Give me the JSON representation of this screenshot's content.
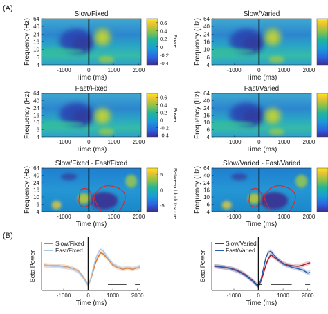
{
  "panel_labels": {
    "a": "(A)",
    "b": "(B)"
  },
  "chart_data": [
    {
      "type": "heatmap",
      "title": "Slow/Fixed",
      "xlabel": "Time (ms)",
      "ylabel": "Frequency (Hz)",
      "xticks": [
        "-1000",
        "0",
        "1000",
        "2000"
      ],
      "yticks": [
        "4",
        "6",
        "10",
        "16",
        "24",
        "40",
        "64"
      ],
      "xlim": [
        -1900,
        2100
      ],
      "colorbar": {
        "label": "Power",
        "ticks": [
          "0.6",
          "0.4",
          "0.2",
          "0",
          "-0.2",
          "-0.4"
        ],
        "range": [
          -0.45,
          0.7
        ]
      }
    },
    {
      "type": "heatmap",
      "title": "Slow/Varied",
      "xlabel": "Time (ms)",
      "ylabel": "Frequency (Hz)",
      "xticks": [
        "-1000",
        "0",
        "1000",
        "2000"
      ],
      "yticks": [
        "4",
        "6",
        "10",
        "16",
        "24",
        "40",
        "64"
      ],
      "xlim": [
        -1900,
        2100
      ]
    },
    {
      "type": "heatmap",
      "title": "Fast/Fixed",
      "xlabel": "Time (ms)",
      "ylabel": "Frequency (Hz)",
      "xticks": [
        "-1000",
        "0",
        "1000",
        "2000"
      ],
      "yticks": [
        "4",
        "6",
        "10",
        "16",
        "24",
        "40",
        "64"
      ],
      "xlim": [
        -1900,
        2100
      ],
      "colorbar": {
        "label": "Power",
        "ticks": [
          "0.6",
          "0.4",
          "0.2",
          "0",
          "-0.2",
          "-0.4"
        ],
        "range": [
          -0.45,
          0.7
        ]
      }
    },
    {
      "type": "heatmap",
      "title": "Fast/Varied",
      "xlabel": "Time (ms)",
      "ylabel": "Frequency (Hz)",
      "xticks": [
        "-1000",
        "0",
        "1000",
        "2000"
      ],
      "yticks": [
        "4",
        "6",
        "10",
        "16",
        "24",
        "40",
        "64"
      ],
      "xlim": [
        -1900,
        2100
      ]
    },
    {
      "type": "heatmap",
      "title": "Slow/Fixed - Fast/Fixed",
      "xlabel": "Time (ms)",
      "ylabel": "Frequency (Hz)",
      "xticks": [
        "-1000",
        "0",
        "1000",
        "2000"
      ],
      "yticks": [
        "4",
        "6",
        "10",
        "16",
        "24",
        "40",
        "64"
      ],
      "xlim": [
        -1900,
        2100
      ],
      "colorbar": {
        "label": "Between block t-score",
        "ticks": [
          "5",
          "0",
          "-5"
        ],
        "range": [
          -7,
          7
        ]
      }
    },
    {
      "type": "heatmap",
      "title": "Slow/Varied - Fast/Varied",
      "xlabel": "Time (ms)",
      "ylabel": "Frequency (Hz)",
      "xticks": [
        "-1000",
        "0",
        "1000",
        "2000"
      ],
      "yticks": [
        "4",
        "6",
        "10",
        "16",
        "24",
        "40",
        "64"
      ],
      "xlim": [
        -1900,
        2100
      ]
    },
    {
      "type": "line",
      "xlabel": "Time (ms)",
      "ylabel": "Beta Power",
      "xticks": [
        "-1000",
        "0",
        "1000",
        "2000"
      ],
      "xlim": [
        -1900,
        2150
      ],
      "ylim": [
        -1,
        1
      ],
      "legend": "top-left",
      "series": [
        {
          "name": "Slow/Fixed",
          "color": "#e8751a",
          "x": [
            -1800,
            -1600,
            -1400,
            -1200,
            -1000,
            -800,
            -600,
            -400,
            -200,
            -50,
            0,
            100,
            200,
            300,
            400,
            500,
            600,
            800,
            1000,
            1200,
            1400,
            1600,
            1800,
            2000,
            2100
          ],
          "y": [
            0.05,
            0.03,
            0.02,
            0.02,
            -0.01,
            -0.04,
            -0.1,
            -0.2,
            -0.45,
            -0.7,
            -0.78,
            -0.55,
            -0.2,
            0.15,
            0.38,
            0.55,
            0.52,
            0.3,
            0.05,
            -0.05,
            -0.12,
            -0.08,
            -0.12,
            -0.06,
            -0.02
          ]
        },
        {
          "name": "Fast/Fixed",
          "color": "#a8c8e6",
          "x": [
            -1800,
            -1600,
            -1400,
            -1200,
            -1000,
            -800,
            -600,
            -400,
            -200,
            -50,
            0,
            100,
            200,
            300,
            400,
            500,
            600,
            800,
            1000,
            1200,
            1400,
            1600,
            1800,
            2000,
            2100
          ],
          "y": [
            0.03,
            0.02,
            0.0,
            0.0,
            -0.03,
            -0.06,
            -0.12,
            -0.22,
            -0.48,
            -0.72,
            -0.8,
            -0.5,
            -0.1,
            0.3,
            0.55,
            0.7,
            0.65,
            0.35,
            0.1,
            -0.02,
            -0.08,
            -0.05,
            -0.08,
            -0.05,
            0.0
          ]
        }
      ],
      "significance_bars": [
        [
          800,
          1550
        ],
        [
          1900,
          2100
        ]
      ]
    },
    {
      "type": "line",
      "xlabel": "Time (ms)",
      "ylabel": "Beta Power",
      "xticks": [
        "-1000",
        "0",
        "1000",
        "2000"
      ],
      "xlim": [
        -1900,
        2150
      ],
      "ylim": [
        -1,
        1
      ],
      "legend": "top-left",
      "series": [
        {
          "name": "Slow/Varied",
          "color": "#b0182a",
          "x": [
            -1800,
            -1600,
            -1400,
            -1200,
            -1000,
            -800,
            -600,
            -400,
            -200,
            -50,
            0,
            100,
            200,
            300,
            400,
            500,
            600,
            800,
            1000,
            1200,
            1400,
            1600,
            1800,
            2000,
            2100
          ],
          "y": [
            0.0,
            -0.02,
            -0.04,
            -0.07,
            -0.12,
            -0.2,
            -0.3,
            -0.45,
            -0.62,
            -0.78,
            -0.8,
            -0.62,
            -0.3,
            0.05,
            0.3,
            0.48,
            0.4,
            0.25,
            0.12,
            0.05,
            0.02,
            0.0,
            0.05,
            0.12,
            0.15
          ]
        },
        {
          "name": "Fast/Varied",
          "color": "#2a5fb0",
          "x": [
            -1800,
            -1600,
            -1400,
            -1200,
            -1000,
            -800,
            -600,
            -400,
            -200,
            -50,
            0,
            100,
            200,
            300,
            400,
            500,
            600,
            800,
            1000,
            1200,
            1400,
            1600,
            1800,
            2000,
            2100
          ],
          "y": [
            0.02,
            -0.01,
            -0.04,
            -0.08,
            -0.14,
            -0.22,
            -0.33,
            -0.48,
            -0.65,
            -0.8,
            -0.85,
            -0.55,
            -0.1,
            0.35,
            0.58,
            0.62,
            0.5,
            0.28,
            0.1,
            0.02,
            -0.05,
            -0.1,
            -0.15,
            -0.28,
            -0.25
          ]
        }
      ],
      "significance_bars": [
        [
          -50,
          150
        ],
        [
          500,
          1350
        ],
        [
          1900,
          2100
        ]
      ]
    }
  ]
}
